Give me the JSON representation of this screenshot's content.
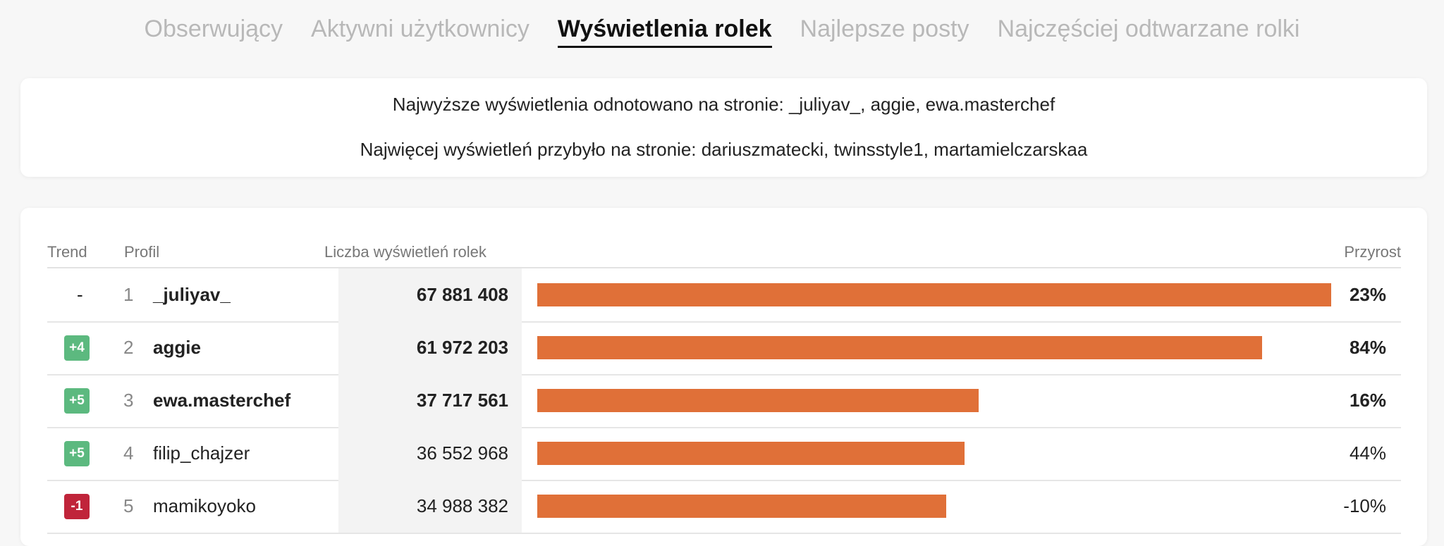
{
  "tabs": [
    {
      "label": "Obserwujący",
      "active": false
    },
    {
      "label": "Aktywni użytkownicy",
      "active": false
    },
    {
      "label": "Wyświetlenia rolek",
      "active": true
    },
    {
      "label": "Najlepsze posty",
      "active": false
    },
    {
      "label": "Najczęściej odtwarzane rolki",
      "active": false
    }
  ],
  "info": {
    "lines": [
      "Najwyższe wyświetlenia odnotowano na stronie: _juliyav_, aggie, ewa.masterchef",
      "Najwięcej wyświetleń przybyło na stronie: dariuszmatecki, twinsstyle1, martamielczarskaa"
    ]
  },
  "table": {
    "headers": {
      "trend": "Trend",
      "profile": "Profil",
      "views": "Liczba wyświetleń rolek",
      "growth": "Przyrost"
    },
    "rows": [
      {
        "trend": "-",
        "rank": 1,
        "profile": "_juliyav_",
        "views": 67881408,
        "views_label": "67 881 408",
        "growth": "23%"
      },
      {
        "trend": "+4",
        "rank": 2,
        "profile": "aggie",
        "views": 61972203,
        "views_label": "61 972 203",
        "growth": "84%"
      },
      {
        "trend": "+5",
        "rank": 3,
        "profile": "ewa.masterchef",
        "views": 37717561,
        "views_label": "37 717 561",
        "growth": "16%"
      },
      {
        "trend": "+5",
        "rank": 4,
        "profile": "filip_chajzer",
        "views": 36552968,
        "views_label": "36 552 968",
        "growth": "44%"
      },
      {
        "trend": "-1",
        "rank": 5,
        "profile": "mamikoyoko",
        "views": 34988382,
        "views_label": "34 988 382",
        "growth": "-10%"
      }
    ]
  }
}
